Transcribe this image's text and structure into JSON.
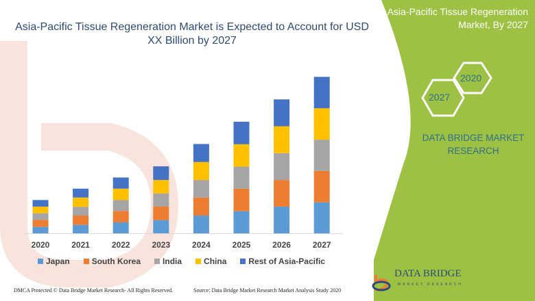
{
  "header": {
    "title": "Asia-Pacific Tissue Regeneration Market is Expected to Account for USD XX Billion by 2027"
  },
  "panel": {
    "title_line1": "Asia-Pacific Tissue Regeneration",
    "title_line2": "Market, By 2027",
    "hex_start": "2020",
    "hex_end": "2027",
    "brand_line1": "DATA BRIDGE MARKET",
    "brand_line2": "RESEARCH",
    "color": "#9dc142"
  },
  "logo": {
    "name": "DATA BRIDGE",
    "sub": "MARKET RESEARCH"
  },
  "watermark": {
    "line1": "DATA BRIDGE",
    "line2": "MARKET RESEARCH"
  },
  "footer": {
    "left": "DMCA Protected © Data Bridge Market Research- All Rights Reserved.",
    "right": "Source: Data Bridge Market Research Market Analysis Study 2020"
  },
  "chart_data": {
    "type": "bar",
    "stacked": true,
    "title": "",
    "xlabel": "",
    "ylabel": "",
    "ylim": [
      0,
      70
    ],
    "grid": false,
    "legend": "bottom",
    "categories": [
      "2020",
      "2021",
      "2022",
      "2023",
      "2024",
      "2025",
      "2026",
      "2027"
    ],
    "series": [
      {
        "name": "Japan",
        "color": "#5b9bd5",
        "values": [
          2.8,
          3.7,
          4.8,
          5.8,
          7.8,
          9.7,
          11.7,
          13.6
        ]
      },
      {
        "name": "South Korea",
        "color": "#ed7d31",
        "values": [
          3.1,
          4.1,
          5.0,
          6.0,
          7.9,
          9.9,
          11.7,
          13.8
        ]
      },
      {
        "name": "India",
        "color": "#a5a5a5",
        "values": [
          2.9,
          3.8,
          4.8,
          5.7,
          7.7,
          9.7,
          11.8,
          13.7
        ]
      },
      {
        "name": "China",
        "color": "#ffc000",
        "values": [
          2.9,
          4.1,
          5.0,
          5.9,
          7.9,
          9.8,
          11.8,
          13.8
        ]
      },
      {
        "name": "Rest of Asia-Pacific",
        "color": "#4472c4",
        "values": [
          2.9,
          3.9,
          4.9,
          6.0,
          7.9,
          9.9,
          11.8,
          13.8
        ]
      }
    ]
  }
}
